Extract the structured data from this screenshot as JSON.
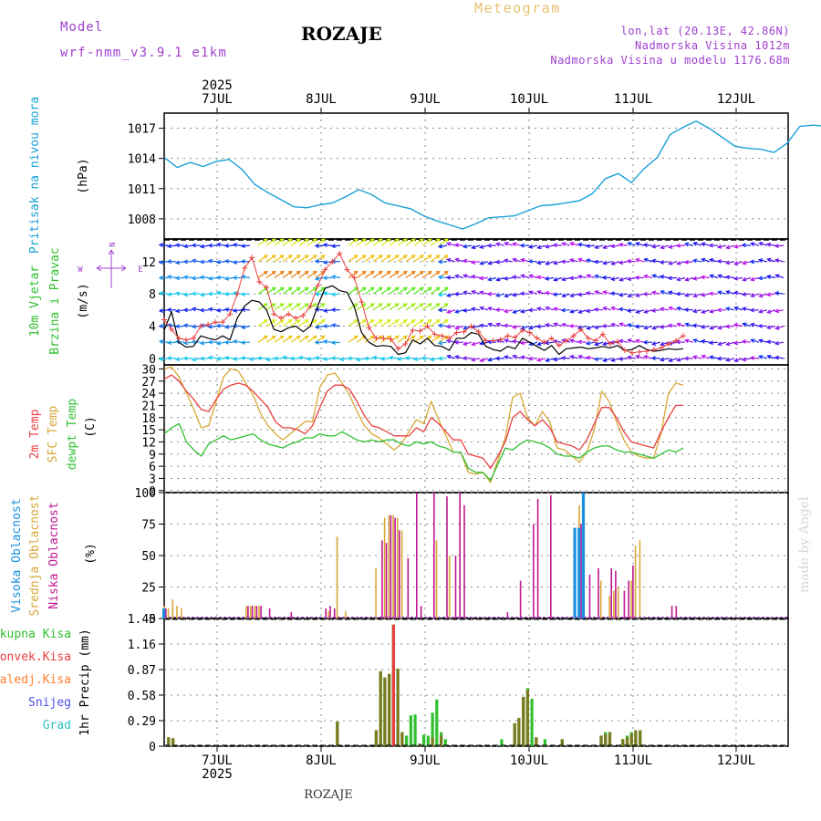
{
  "header": {
    "meteogram_label": "Meteogram",
    "model_label": "Model",
    "model_name": "wrf-nmm_v3.9.1 e1km",
    "station": "ROZAJE",
    "lonlat": "lon,lat (20.13E, 42.86N)",
    "elevation": "Nadmorska Visina 1012m",
    "model_elevation": "Nadmorska Visina u modelu 1176.68m",
    "year_top": "2025",
    "year_bottom": "2025",
    "footer_station": "ROZAJE",
    "watermark": "made by Angel"
  },
  "colors": {
    "pressure": "#1aa0d8",
    "temp2m": "#e84040",
    "sfc": "#d8a838",
    "dewpt": "#30c030",
    "high_cloud": "#1890e0",
    "mid_cloud": "#d8a838",
    "low_cloud": "#c01890",
    "total_precip": "#30c030",
    "conv_precip": "#e84040",
    "frozen": "#ff8030",
    "snow": "#5050e8",
    "hail": "#30c0c0",
    "wind_speed": "#000000",
    "gust": "#e84040",
    "wind_label": "#30c030",
    "wind_compass": "#a040d0",
    "header_purple": "#a040d0",
    "header_gold": "#e8c070",
    "watermark": "#d0d0d0"
  },
  "chart_data": [
    {
      "type": "line",
      "panel": "pressure",
      "ylabel": "Pritisak na nivou mora",
      "unit": "(hPa)",
      "yticks": [
        1008,
        1011,
        1014,
        1017
      ],
      "ylim": [
        1006,
        1018.5
      ],
      "x_start": "2025-07-06 13:00",
      "x_step_hours": 3,
      "x_labels": [
        "7JUL",
        "8JUL",
        "9JUL",
        "10JUL",
        "11JUL",
        "12JUL"
      ],
      "values": [
        1014.1,
        1013.1,
        1013.6,
        1013.2,
        1013.7,
        1013.9,
        1012.9,
        1011.4,
        1010.6,
        1009.9,
        1009.2,
        1009.1,
        1009.4,
        1009.6,
        1010.2,
        1010.9,
        1010.4,
        1009.6,
        1009.3,
        1009.0,
        1008.3,
        1007.8,
        1007.4,
        1007.0,
        1007.5,
        1008.1,
        1008.2,
        1008.3,
        1008.8,
        1009.3,
        1009.4,
        1009.6,
        1009.8,
        1010.5,
        1012.0,
        1012.5,
        1011.6,
        1013.0,
        1014.1,
        1016.4,
        1017.1,
        1017.7,
        1017.0,
        1016.1,
        1015.2,
        1015.0,
        1014.9,
        1014.6,
        1015.5,
        1017.2,
        1017.3,
        1017.2,
        1016.8,
        1016.3,
        1015.9,
        1014.9,
        1014.3,
        1014.5,
        1016.2,
        1017.1,
        1017.0,
        1016.6,
        1016.8,
        1016.2,
        1015.1,
        1014.6
      ]
    },
    {
      "type": "line",
      "panel": "wind",
      "ylabel_line1": "10m Vjetar",
      "ylabel_line2": "Brzina i Pravac",
      "unit": "(m/s)",
      "compass_n": "N",
      "compass_e": "E",
      "compass_w": "W",
      "yticks": [
        0,
        4,
        8,
        12
      ],
      "ylim": [
        -0.8,
        14.8
      ],
      "speed": [
        3.5,
        5.8,
        2.0,
        1.4,
        1.5,
        2.8,
        2.5,
        2.3,
        2.8,
        2.3,
        5.0,
        6.5,
        7.2,
        7.0,
        6.0,
        3.6,
        3.3,
        3.8,
        4.0,
        3.3,
        4.0,
        6.5,
        8.7,
        9.0,
        8.4,
        8.2,
        6.4,
        3.2,
        2.0,
        1.5,
        1.6,
        1.5,
        0.5,
        0.7,
        2.3,
        1.8,
        2.5,
        1.6,
        1.5,
        1.0,
        2.5,
        2.5,
        3.2,
        3.0,
        1.5,
        1.1,
        0.9,
        1.5,
        1.2,
        2.5,
        2.0,
        1.5,
        1.0,
        1.6,
        0.5,
        1.2,
        1.3,
        1.4,
        1.2,
        1.3,
        1.5,
        1.3,
        1.6,
        1.0,
        1.1,
        1.6,
        1.1,
        0.9,
        1.0,
        1.2,
        1.1,
        1.2
      ],
      "gust": [
        4.8,
        3.6,
        2.5,
        2.3,
        2.5,
        4.0,
        4.2,
        4.5,
        4.5,
        5.5,
        8.0,
        11.2,
        12.5,
        9.5,
        8.8,
        5.5,
        5.0,
        5.5,
        5.0,
        5.3,
        6.5,
        9.0,
        11.0,
        12.0,
        13.0,
        11.0,
        10.0,
        7.0,
        3.8,
        2.5,
        2.5,
        2.4,
        1.2,
        1.8,
        3.5,
        3.4,
        4.0,
        3.0,
        2.8,
        2.5,
        3.2,
        3.3,
        4.0,
        3.3,
        2.2,
        2.2,
        2.3,
        2.8,
        2.6,
        3.5,
        3.2,
        2.5,
        2.0,
        2.5,
        1.6,
        2.2,
        2.8,
        3.6,
        2.5,
        2.2,
        3.0,
        1.8,
        2.1,
        1.0,
        0.7,
        0.8,
        0.9,
        1.1,
        1.3,
        1.8,
        2.2,
        2.8
      ]
    },
    {
      "type": "line",
      "panel": "temperature",
      "labels": [
        "2m Temp",
        "SFC Temp",
        "dewpt Temp"
      ],
      "unit": "(C)",
      "yticks": [
        0,
        3,
        6,
        9,
        12,
        15,
        18,
        21,
        24,
        27,
        30
      ],
      "ylim": [
        -0.5,
        31
      ],
      "x_step_hours": 2,
      "t2m": [
        27.5,
        28.5,
        27.0,
        24.5,
        22.5,
        20.0,
        19.5,
        22.5,
        25.0,
        26.0,
        26.5,
        26.0,
        24.5,
        22.5,
        20.5,
        17.0,
        15.5,
        15.5,
        15.0,
        14.0,
        16.0,
        20.5,
        24.5,
        26.0,
        26.0,
        25.0,
        22.0,
        18.5,
        16.0,
        15.5,
        14.5,
        13.5,
        13.5,
        13.5,
        15.5,
        14.5,
        18.0,
        16.5,
        14.5,
        12.5,
        12.5,
        9.0,
        8.5,
        8.0,
        5.5,
        8.5,
        12.0,
        18.0,
        19.5,
        17.5,
        16.0,
        17.5,
        15.5,
        12.0,
        11.5,
        11.0,
        10.0,
        12.5,
        16.5,
        20.5,
        20.5,
        18.0,
        14.5,
        12.0,
        11.5,
        11.0,
        10.5,
        14.5,
        18.0,
        21.0,
        21.0
      ],
      "sfc": [
        30.0,
        30.5,
        28.0,
        24.0,
        20.0,
        15.5,
        16.0,
        22.0,
        28.0,
        30.0,
        29.5,
        26.5,
        23.5,
        19.0,
        16.0,
        14.0,
        12.5,
        14.0,
        15.5,
        17.0,
        17.0,
        25.5,
        28.5,
        29.0,
        26.5,
        23.5,
        19.5,
        16.0,
        14.0,
        13.0,
        11.5,
        10.0,
        11.5,
        14.5,
        17.5,
        16.5,
        22.0,
        17.5,
        13.5,
        9.5,
        9.5,
        4.5,
        4.0,
        4.5,
        2.0,
        7.5,
        13.0,
        23.0,
        24.0,
        18.0,
        16.0,
        19.5,
        17.0,
        10.5,
        10.0,
        8.5,
        7.0,
        9.5,
        15.0,
        24.5,
        22.0,
        17.0,
        12.5,
        9.5,
        8.5,
        8.0,
        8.0,
        14.0,
        24.0,
        26.5,
        26.0
      ],
      "dewpt": [
        14.0,
        15.5,
        16.5,
        12.0,
        10.0,
        8.5,
        11.5,
        12.5,
        13.5,
        12.5,
        13.0,
        13.5,
        14.0,
        12.5,
        11.5,
        11.0,
        10.5,
        11.5,
        12.0,
        13.0,
        13.0,
        14.0,
        13.5,
        13.5,
        14.5,
        13.5,
        12.5,
        12.0,
        12.5,
        12.0,
        12.5,
        12.5,
        11.5,
        11.0,
        12.0,
        11.5,
        12.0,
        11.0,
        10.5,
        9.5,
        9.5,
        5.5,
        4.5,
        4.5,
        2.5,
        6.5,
        10.5,
        10.0,
        11.5,
        12.5,
        12.0,
        11.5,
        10.5,
        9.0,
        8.5,
        8.5,
        8.0,
        9.5,
        10.5,
        11.0,
        11.0,
        10.0,
        9.5,
        9.5,
        9.0,
        8.5,
        8.0,
        9.0,
        10.0,
        9.5,
        10.5
      ]
    },
    {
      "type": "bar",
      "panel": "clouds",
      "labels": [
        "Visoka Oblacnost",
        "Srednja Oblacnost",
        "Niska Oblacnost"
      ],
      "unit": "(%)",
      "yticks": [
        0,
        25,
        50,
        75,
        100
      ],
      "ylim": [
        0,
        100
      ],
      "hourly_start": "2025-07-06 13:00",
      "high": [
        [
          0,
          8
        ],
        [
          95,
          72
        ],
        [
          96,
          72
        ],
        [
          97,
          100
        ]
      ],
      "mid": [
        [
          0,
          10
        ],
        [
          1,
          8
        ],
        [
          2,
          15
        ],
        [
          3,
          10
        ],
        [
          4,
          8
        ],
        [
          19,
          10
        ],
        [
          20,
          10
        ],
        [
          21,
          10
        ],
        [
          22,
          10
        ],
        [
          38,
          6
        ],
        [
          40,
          65
        ],
        [
          42,
          6
        ],
        [
          49,
          40
        ],
        [
          51,
          80
        ],
        [
          52,
          82
        ],
        [
          53,
          82
        ],
        [
          54,
          80
        ],
        [
          55,
          70
        ],
        [
          63,
          62
        ],
        [
          66,
          50
        ],
        [
          95,
          70
        ],
        [
          96,
          90
        ],
        [
          97,
          95
        ],
        [
          101,
          30
        ],
        [
          103,
          18
        ],
        [
          104,
          22
        ],
        [
          105,
          25
        ],
        [
          108,
          30
        ],
        [
          109,
          58
        ],
        [
          110,
          62
        ]
      ],
      "low": [
        [
          0,
          8
        ],
        [
          19,
          10
        ],
        [
          20,
          10
        ],
        [
          21,
          10
        ],
        [
          22,
          10
        ],
        [
          24,
          8
        ],
        [
          29,
          5
        ],
        [
          37,
          8
        ],
        [
          38,
          10
        ],
        [
          39,
          8
        ],
        [
          50,
          62
        ],
        [
          51,
          60
        ],
        [
          52,
          82
        ],
        [
          53,
          80
        ],
        [
          54,
          70
        ],
        [
          56,
          48
        ],
        [
          58,
          100
        ],
        [
          59,
          10
        ],
        [
          62,
          100
        ],
        [
          65,
          97
        ],
        [
          67,
          50
        ],
        [
          68,
          100
        ],
        [
          69,
          90
        ],
        [
          79,
          5
        ],
        [
          82,
          30
        ],
        [
          85,
          75
        ],
        [
          86,
          95
        ],
        [
          89,
          98
        ],
        [
          96,
          75
        ],
        [
          98,
          35
        ],
        [
          100,
          40
        ],
        [
          103,
          40
        ],
        [
          104,
          38
        ],
        [
          106,
          22
        ],
        [
          107,
          30
        ],
        [
          108,
          42
        ],
        [
          117,
          10
        ],
        [
          118,
          10
        ]
      ]
    },
    {
      "type": "bar",
      "panel": "precip",
      "labels": [
        "Ukupna Kisa",
        "Konvek.Kisa",
        "Zaledj.Kisa",
        "Snijeg",
        "Grad"
      ],
      "unit": "1hr Precip (mm)",
      "yticks": [
        0,
        0.29,
        0.58,
        0.87,
        1.16,
        1.45
      ],
      "ylim": [
        0,
        1.45
      ],
      "hourly_start": "2025-07-06 13:00",
      "total": [
        [
          1,
          0.1
        ],
        [
          2,
          0.09
        ],
        [
          40,
          0.28
        ],
        [
          49,
          0.18
        ],
        [
          50,
          0.85
        ],
        [
          51,
          0.78
        ],
        [
          52,
          0.82
        ],
        [
          53,
          1.38
        ],
        [
          54,
          0.88
        ],
        [
          55,
          0.16
        ],
        [
          56,
          0.12
        ],
        [
          57,
          0.35
        ],
        [
          58,
          0.36
        ],
        [
          60,
          0.13
        ],
        [
          61,
          0.12
        ],
        [
          62,
          0.38
        ],
        [
          63,
          0.53
        ],
        [
          64,
          0.16
        ],
        [
          65,
          0.08
        ],
        [
          78,
          0.08
        ],
        [
          81,
          0.26
        ],
        [
          82,
          0.32
        ],
        [
          83,
          0.56
        ],
        [
          84,
          0.66
        ],
        [
          85,
          0.54
        ],
        [
          86,
          0.1
        ],
        [
          88,
          0.08
        ],
        [
          92,
          0.08
        ],
        [
          101,
          0.12
        ],
        [
          102,
          0.16
        ],
        [
          103,
          0.16
        ],
        [
          106,
          0.08
        ],
        [
          107,
          0.12
        ],
        [
          108,
          0.16
        ],
        [
          109,
          0.18
        ],
        [
          110,
          0.18
        ]
      ],
      "convective": [
        [
          1,
          0.1
        ],
        [
          2,
          0.09
        ],
        [
          40,
          0.28
        ],
        [
          49,
          0.18
        ],
        [
          50,
          0.85
        ],
        [
          51,
          0.78
        ],
        [
          52,
          0.82
        ],
        [
          53,
          1.38
        ],
        [
          54,
          0.88
        ],
        [
          55,
          0.16
        ],
        [
          59,
          0.03
        ],
        [
          62,
          0.1
        ],
        [
          64,
          0.12
        ],
        [
          81,
          0.26
        ],
        [
          82,
          0.32
        ],
        [
          83,
          0.56
        ],
        [
          84,
          0.64
        ],
        [
          86,
          0.1
        ],
        [
          92,
          0.08
        ],
        [
          101,
          0.12
        ],
        [
          102,
          0.14
        ],
        [
          103,
          0.16
        ],
        [
          106,
          0.08
        ],
        [
          107,
          0.1
        ],
        [
          108,
          0.14
        ],
        [
          109,
          0.18
        ],
        [
          110,
          0.18
        ]
      ]
    }
  ]
}
